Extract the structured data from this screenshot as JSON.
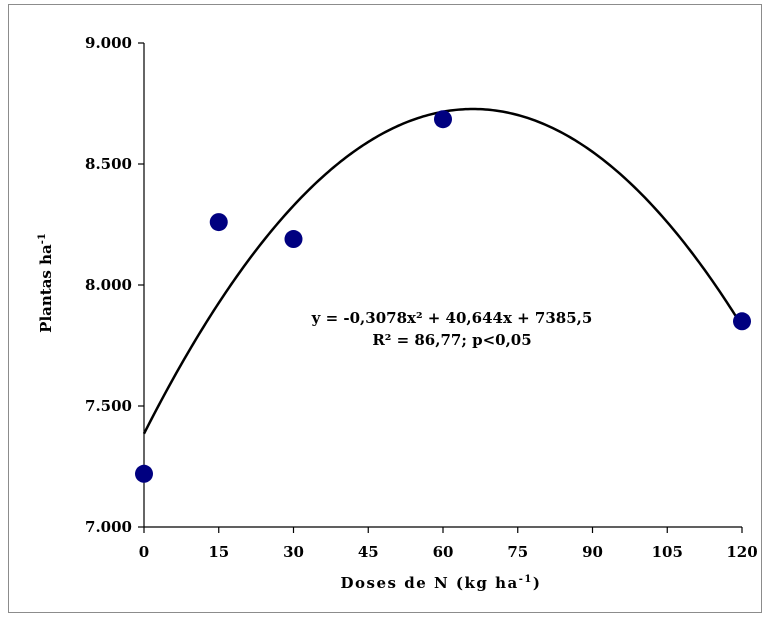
{
  "chart_data": {
    "type": "scatter",
    "title": "",
    "xlabel": {
      "prefix": "Doses de N (kg ha",
      "superscript": "-1",
      "suffix": ")"
    },
    "ylabel": {
      "base": "Plantas ha",
      "superscript": "-1"
    },
    "xlim": [
      0,
      120
    ],
    "ylim": [
      7000,
      9000
    ],
    "x_ticks": [
      0,
      15,
      30,
      45,
      60,
      75,
      90,
      105,
      120
    ],
    "x_tick_labels": [
      "0",
      "15",
      "30",
      "45",
      "60",
      "75",
      "90",
      "105",
      "120"
    ],
    "y_ticks": [
      7000,
      7500,
      8000,
      8500,
      9000
    ],
    "y_tick_labels": [
      "7.000",
      "7.500",
      "8.000",
      "8.500",
      "9.000"
    ],
    "grid": false,
    "point_color": "#000080",
    "line_color": "#000000",
    "points": [
      {
        "x": 0,
        "y": 7220
      },
      {
        "x": 15,
        "y": 8260
      },
      {
        "x": 30,
        "y": 8190
      },
      {
        "x": 60,
        "y": 8685
      },
      {
        "x": 120,
        "y": 7850
      }
    ],
    "fit": {
      "type": "quadratic",
      "a": -0.3078,
      "b": 40.644,
      "c": 7385.5
    },
    "annotation": {
      "line1": "y = -0,3078x² + 40,644x + 7385,5",
      "line2": "R² = 86,77; p<0,05"
    }
  }
}
